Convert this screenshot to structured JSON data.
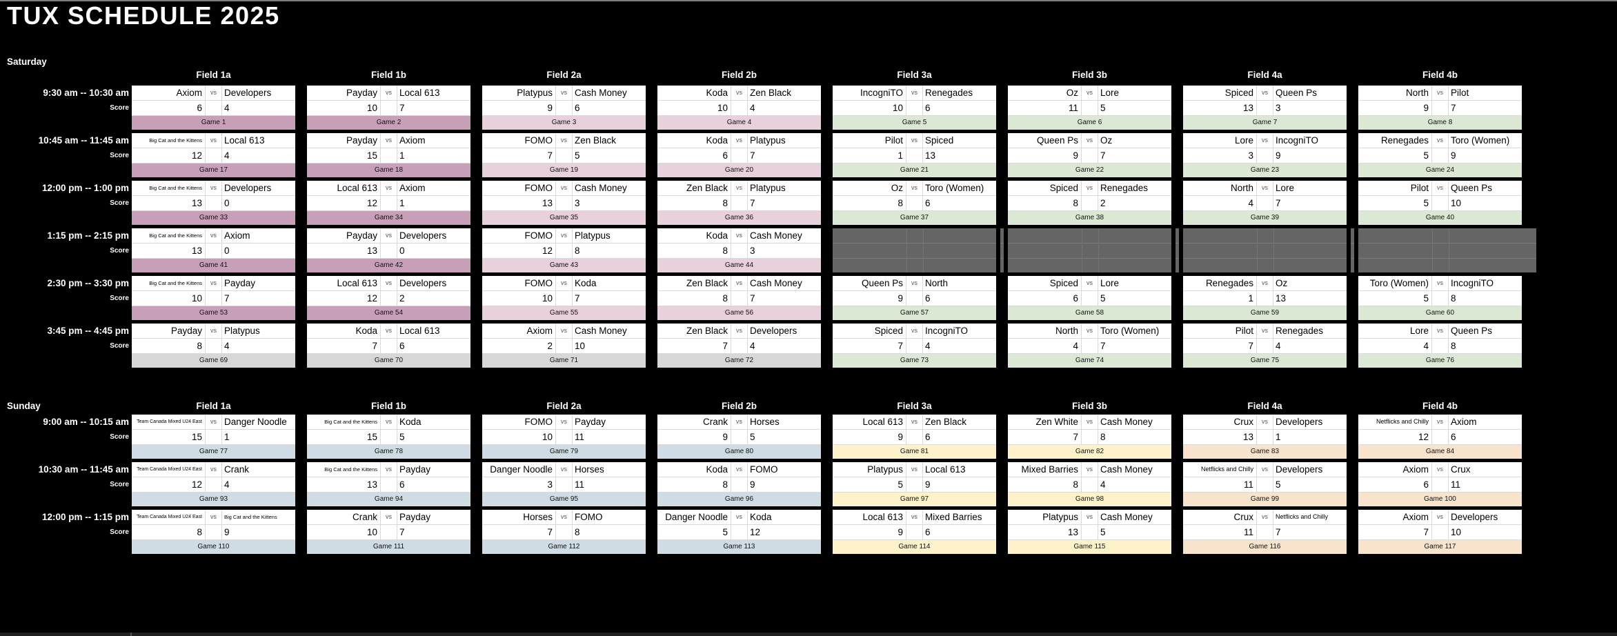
{
  "title": "TUX SCHEDULE 2025",
  "ui": {
    "vs": "vs",
    "score_label": "Score"
  },
  "palette": {
    "sat_fields_1": "#c89fb9",
    "sat_fields_2": "#e8d0dd",
    "sat_fields_34": "#dbe8d4",
    "sat_last_round_gray": "#d7d7d7",
    "no_game_block": "#656565",
    "sun_fields_12": "#cfdce3",
    "sun_fields_3": "#fdf2ca",
    "sun_fields_4": "#f8e3cd",
    "page_background": "#000000",
    "cell_background": "#ffffff"
  },
  "days": [
    {
      "label": "Saturday",
      "fields": [
        "Field 1a",
        "Field 1b",
        "Field 2a",
        "Field 2b",
        "Field 3a",
        "Field 3b",
        "Field 4a",
        "Field 4b"
      ],
      "rows": [
        {
          "time": "9:30 am -- 10:30 am",
          "games": [
            {
              "team1": "Axiom",
              "team2": "Developers",
              "score1": "6",
              "score2": "4",
              "game": "Game 1",
              "color": "sat_fields_1"
            },
            {
              "team1": "Payday",
              "team2": "Local 613",
              "score1": "10",
              "score2": "7",
              "game": "Game 2",
              "color": "sat_fields_1"
            },
            {
              "team1": "Platypus",
              "team2": "Cash Money",
              "score1": "9",
              "score2": "6",
              "game": "Game 3",
              "color": "sat_fields_2"
            },
            {
              "team1": "Koda",
              "team2": "Zen Black",
              "score1": "10",
              "score2": "4",
              "game": "Game 4",
              "color": "sat_fields_2"
            },
            {
              "team1": "IncogniTO",
              "team2": "Renegades",
              "score1": "10",
              "score2": "6",
              "game": "Game 5",
              "color": "sat_fields_34"
            },
            {
              "team1": "Oz",
              "team2": "Lore",
              "score1": "11",
              "score2": "5",
              "game": "Game 6",
              "color": "sat_fields_34"
            },
            {
              "team1": "Spiced",
              "team2": "Queen Ps",
              "score1": "13",
              "score2": "3",
              "game": "Game 7",
              "color": "sat_fields_34"
            },
            {
              "team1": "North",
              "team2": "Pilot",
              "score1": "9",
              "score2": "7",
              "game": "Game 8",
              "color": "sat_fields_34"
            }
          ]
        },
        {
          "time": "10:45 am -- 11:45 am",
          "games": [
            {
              "team1": "Big Cat and the Kittens",
              "team2": "Local 613",
              "score1": "12",
              "score2": "4",
              "game": "Game 17",
              "color": "sat_fields_1"
            },
            {
              "team1": "Payday",
              "team2": "Axiom",
              "score1": "15",
              "score2": "1",
              "game": "Game 18",
              "color": "sat_fields_1"
            },
            {
              "team1": "FOMO",
              "team2": "Zen Black",
              "score1": "7",
              "score2": "5",
              "game": "Game 19",
              "color": "sat_fields_2"
            },
            {
              "team1": "Koda",
              "team2": "Platypus",
              "score1": "6",
              "score2": "7",
              "game": "Game 20",
              "color": "sat_fields_2"
            },
            {
              "team1": "Pilot",
              "team2": "Spiced",
              "score1": "1",
              "score2": "13",
              "game": "Game 21",
              "color": "sat_fields_34"
            },
            {
              "team1": "Queen Ps",
              "team2": "Oz",
              "score1": "9",
              "score2": "7",
              "game": "Game 22",
              "color": "sat_fields_34"
            },
            {
              "team1": "Lore",
              "team2": "IncogniTO",
              "score1": "3",
              "score2": "9",
              "game": "Game 23",
              "color": "sat_fields_34"
            },
            {
              "team1": "Renegades",
              "team2": "Toro (Women)",
              "score1": "5",
              "score2": "9",
              "game": "Game 24",
              "color": "sat_fields_34"
            }
          ]
        },
        {
          "time": "12:00 pm -- 1:00 pm",
          "games": [
            {
              "team1": "Big Cat and the Kittens",
              "team2": "Developers",
              "score1": "13",
              "score2": "0",
              "game": "Game 33",
              "color": "sat_fields_1"
            },
            {
              "team1": "Local 613",
              "team2": "Axiom",
              "score1": "12",
              "score2": "1",
              "game": "Game 34",
              "color": "sat_fields_1"
            },
            {
              "team1": "FOMO",
              "team2": "Cash Money",
              "score1": "13",
              "score2": "3",
              "game": "Game 35",
              "color": "sat_fields_2"
            },
            {
              "team1": "Zen Black",
              "team2": "Platypus",
              "score1": "8",
              "score2": "7",
              "game": "Game 36",
              "color": "sat_fields_2"
            },
            {
              "team1": "Oz",
              "team2": "Toro (Women)",
              "score1": "8",
              "score2": "6",
              "game": "Game 37",
              "color": "sat_fields_34"
            },
            {
              "team1": "Spiced",
              "team2": "Renegades",
              "score1": "8",
              "score2": "2",
              "game": "Game 38",
              "color": "sat_fields_34"
            },
            {
              "team1": "North",
              "team2": "Lore",
              "score1": "4",
              "score2": "7",
              "game": "Game 39",
              "color": "sat_fields_34"
            },
            {
              "team1": "Pilot",
              "team2": "Queen Ps",
              "score1": "5",
              "score2": "10",
              "game": "Game 40",
              "color": "sat_fields_34"
            }
          ]
        },
        {
          "time": "1:15 pm -- 2:15 pm",
          "games": [
            {
              "team1": "Big Cat and the Kittens",
              "team2": "Axiom",
              "score1": "13",
              "score2": "0",
              "game": "Game 41",
              "color": "sat_fields_1"
            },
            {
              "team1": "Payday",
              "team2": "Developers",
              "score1": "13",
              "score2": "0",
              "game": "Game 42",
              "color": "sat_fields_1"
            },
            {
              "team1": "FOMO",
              "team2": "Platypus",
              "score1": "12",
              "score2": "8",
              "game": "Game 43",
              "color": "sat_fields_2"
            },
            {
              "team1": "Koda",
              "team2": "Cash Money",
              "score1": "8",
              "score2": "3",
              "game": "Game 44",
              "color": "sat_fields_2"
            },
            {
              "empty": true
            },
            {
              "empty": true
            },
            {
              "empty": true
            },
            {
              "empty": true
            }
          ]
        },
        {
          "time": "2:30 pm -- 3:30 pm",
          "games": [
            {
              "team1": "Big Cat and the Kittens",
              "team2": "Payday",
              "score1": "10",
              "score2": "7",
              "game": "Game 53",
              "color": "sat_fields_1"
            },
            {
              "team1": "Local 613",
              "team2": "Developers",
              "score1": "12",
              "score2": "2",
              "game": "Game 54",
              "color": "sat_fields_1"
            },
            {
              "team1": "FOMO",
              "team2": "Koda",
              "score1": "10",
              "score2": "7",
              "game": "Game 55",
              "color": "sat_fields_2"
            },
            {
              "team1": "Zen Black",
              "team2": "Cash Money",
              "score1": "8",
              "score2": "7",
              "game": "Game 56",
              "color": "sat_fields_2"
            },
            {
              "team1": "Queen Ps",
              "team2": "North",
              "score1": "9",
              "score2": "6",
              "game": "Game 57",
              "color": "sat_fields_34"
            },
            {
              "team1": "Spiced",
              "team2": "Lore",
              "score1": "6",
              "score2": "5",
              "game": "Game 58",
              "color": "sat_fields_34"
            },
            {
              "team1": "Renegades",
              "team2": "Oz",
              "score1": "1",
              "score2": "13",
              "game": "Game 59",
              "color": "sat_fields_34"
            },
            {
              "team1": "Toro (Women)",
              "team2": "IncogniTO",
              "score1": "5",
              "score2": "8",
              "game": "Game 60",
              "color": "sat_fields_34"
            }
          ]
        },
        {
          "time": "3:45 pm -- 4:45 pm",
          "games": [
            {
              "team1": "Payday",
              "team2": "Platypus",
              "score1": "8",
              "score2": "4",
              "game": "Game 69",
              "color": "sat_last_round_gray"
            },
            {
              "team1": "Koda",
              "team2": "Local 613",
              "score1": "7",
              "score2": "6",
              "game": "Game 70",
              "color": "sat_last_round_gray"
            },
            {
              "team1": "Axiom",
              "team2": "Cash Money",
              "score1": "2",
              "score2": "10",
              "game": "Game 71",
              "color": "sat_last_round_gray"
            },
            {
              "team1": "Zen Black",
              "team2": "Developers",
              "score1": "7",
              "score2": "4",
              "game": "Game 72",
              "color": "sat_last_round_gray"
            },
            {
              "team1": "Spiced",
              "team2": "IncogniTO",
              "score1": "7",
              "score2": "4",
              "game": "Game 73",
              "color": "sat_fields_34"
            },
            {
              "team1": "North",
              "team2": "Toro (Women)",
              "score1": "4",
              "score2": "7",
              "game": "Game 74",
              "color": "sat_fields_34"
            },
            {
              "team1": "Pilot",
              "team2": "Renegades",
              "score1": "7",
              "score2": "4",
              "game": "Game 75",
              "color": "sat_fields_34"
            },
            {
              "team1": "Lore",
              "team2": "Queen Ps",
              "score1": "4",
              "score2": "8",
              "game": "Game 76",
              "color": "sat_fields_34"
            }
          ]
        }
      ]
    },
    {
      "label": "Sunday",
      "fields": [
        "Field 1a",
        "Field 1b",
        "Field 2a",
        "Field 2b",
        "Field 3a",
        "Field 3b",
        "Field 4a",
        "Field 4b"
      ],
      "rows": [
        {
          "time": "9:00 am -- 10:15 am",
          "games": [
            {
              "team1": "Team Canada Mixed U24 East",
              "team2": "Danger Noodle",
              "score1": "15",
              "score2": "1",
              "game": "Game 77",
              "color": "sun_fields_12"
            },
            {
              "team1": "Big Cat and the Kittens",
              "team2": "Koda",
              "score1": "15",
              "score2": "5",
              "game": "Game 78",
              "color": "sun_fields_12"
            },
            {
              "team1": "FOMO",
              "team2": "Payday",
              "score1": "10",
              "score2": "11",
              "game": "Game 79",
              "color": "sun_fields_12"
            },
            {
              "team1": "Crank",
              "team2": "Horses",
              "score1": "9",
              "score2": "5",
              "game": "Game 80",
              "color": "sun_fields_12"
            },
            {
              "team1": "Local 613",
              "team2": "Zen Black",
              "score1": "9",
              "score2": "6",
              "game": "Game 81",
              "color": "sun_fields_3"
            },
            {
              "team1": "Zen White",
              "team2": "Cash Money",
              "score1": "7",
              "score2": "8",
              "game": "Game 82",
              "color": "sun_fields_3"
            },
            {
              "team1": "Crux",
              "team2": "Developers",
              "score1": "13",
              "score2": "1",
              "game": "Game 83",
              "color": "sun_fields_4"
            },
            {
              "team1": "Netflicks and Chilly",
              "team2": "Axiom",
              "score1": "12",
              "score2": "6",
              "game": "Game 84",
              "color": "sun_fields_4"
            }
          ]
        },
        {
          "time": "10:30 am -- 11:45 am",
          "games": [
            {
              "team1": "Team Canada Mixed U24 East",
              "team2": "Crank",
              "score1": "12",
              "score2": "4",
              "game": "Game 93",
              "color": "sun_fields_12"
            },
            {
              "team1": "Big Cat and the Kittens",
              "team2": "Payday",
              "score1": "13",
              "score2": "6",
              "game": "Game 94",
              "color": "sun_fields_12"
            },
            {
              "team1": "Danger Noodle",
              "team2": "Horses",
              "score1": "3",
              "score2": "11",
              "game": "Game 95",
              "color": "sun_fields_12"
            },
            {
              "team1": "Koda",
              "team2": "FOMO",
              "score1": "8",
              "score2": "9",
              "game": "Game 96",
              "color": "sun_fields_12"
            },
            {
              "team1": "Platypus",
              "team2": "Local 613",
              "score1": "5",
              "score2": "9",
              "game": "Game 97",
              "color": "sun_fields_3"
            },
            {
              "team1": "Mixed Barries",
              "team2": "Cash Money",
              "score1": "8",
              "score2": "4",
              "game": "Game 98",
              "color": "sun_fields_3"
            },
            {
              "team1": "Netflicks and Chilly",
              "team2": "Developers",
              "score1": "11",
              "score2": "5",
              "game": "Game 99",
              "color": "sun_fields_4"
            },
            {
              "team1": "Axiom",
              "team2": "Crux",
              "score1": "6",
              "score2": "11",
              "game": "Game 100",
              "color": "sun_fields_4"
            }
          ]
        },
        {
          "time": "12:00 pm -- 1:15 pm",
          "games": [
            {
              "team1": "Team Canada Mixed U24 East",
              "team2": "Big Cat and the Kittens",
              "score1": "8",
              "score2": "9",
              "game": "Game 110",
              "color": "sun_fields_12"
            },
            {
              "team1": "Crank",
              "team2": "Payday",
              "score1": "10",
              "score2": "7",
              "game": "Game 111",
              "color": "sun_fields_12"
            },
            {
              "team1": "Horses",
              "team2": "FOMO",
              "score1": "7",
              "score2": "8",
              "game": "Game 112",
              "color": "sun_fields_12"
            },
            {
              "team1": "Danger Noodle",
              "team2": "Koda",
              "score1": "5",
              "score2": "12",
              "game": "Game 113",
              "color": "sun_fields_12"
            },
            {
              "team1": "Local 613",
              "team2": "Mixed Barries",
              "score1": "9",
              "score2": "6",
              "game": "Game 114",
              "color": "sun_fields_3"
            },
            {
              "team1": "Platypus",
              "team2": "Cash Money",
              "score1": "13",
              "score2": "5",
              "game": "Game 115",
              "color": "sun_fields_3"
            },
            {
              "team1": "Crux",
              "team2": "Netflicks and Chilly",
              "score1": "11",
              "score2": "7",
              "game": "Game 116",
              "color": "sun_fields_4"
            },
            {
              "team1": "Axiom",
              "team2": "Developers",
              "score1": "7",
              "score2": "10",
              "game": "Game 117",
              "color": "sun_fields_4"
            }
          ]
        }
      ]
    }
  ]
}
